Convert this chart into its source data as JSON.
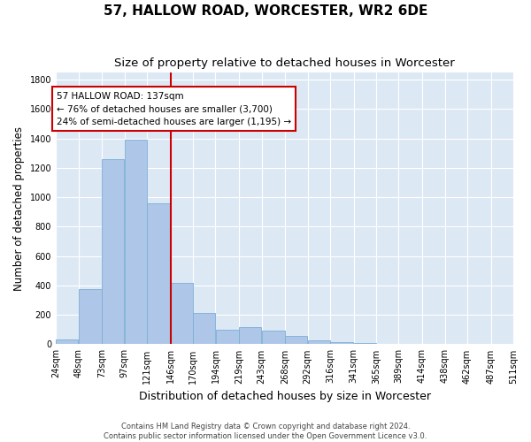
{
  "title": "57, HALLOW ROAD, WORCESTER, WR2 6DE",
  "subtitle": "Size of property relative to detached houses in Worcester",
  "xlabel": "Distribution of detached houses by size in Worcester",
  "ylabel": "Number of detached properties",
  "footer_line1": "Contains HM Land Registry data © Crown copyright and database right 2024.",
  "footer_line2": "Contains public sector information licensed under the Open Government Licence v3.0.",
  "annotation_line1": "57 HALLOW ROAD: 137sqm",
  "annotation_line2": "← 76% of detached houses are smaller (3,700)",
  "annotation_line3": "24% of semi-detached houses are larger (1,195) →",
  "red_line_x": 137,
  "bar_edges": [
    24,
    48,
    73,
    97,
    121,
    146,
    170,
    194,
    219,
    243,
    268,
    292,
    316,
    341,
    365,
    389,
    414,
    438,
    462,
    487,
    511
  ],
  "bar_heights": [
    30,
    375,
    1260,
    1390,
    960,
    415,
    215,
    100,
    115,
    95,
    55,
    25,
    15,
    10,
    5,
    0,
    0,
    0,
    0,
    0
  ],
  "bar_color": "#aec6e8",
  "bar_edge_color": "#7bafd4",
  "red_line_color": "#cc0000",
  "annotation_box_color": "#cc0000",
  "plot_bg_color": "#dde8f5",
  "fig_bg_color": "#ffffff",
  "ylim": [
    0,
    1850
  ],
  "yticks": [
    0,
    200,
    400,
    600,
    800,
    1000,
    1200,
    1400,
    1600,
    1800
  ],
  "grid_color": "#ffffff",
  "title_fontsize": 11,
  "subtitle_fontsize": 9.5,
  "ylabel_fontsize": 8.5,
  "xlabel_fontsize": 9,
  "tick_fontsize": 7,
  "footer_fontsize": 6,
  "annotation_fontsize": 7.5
}
